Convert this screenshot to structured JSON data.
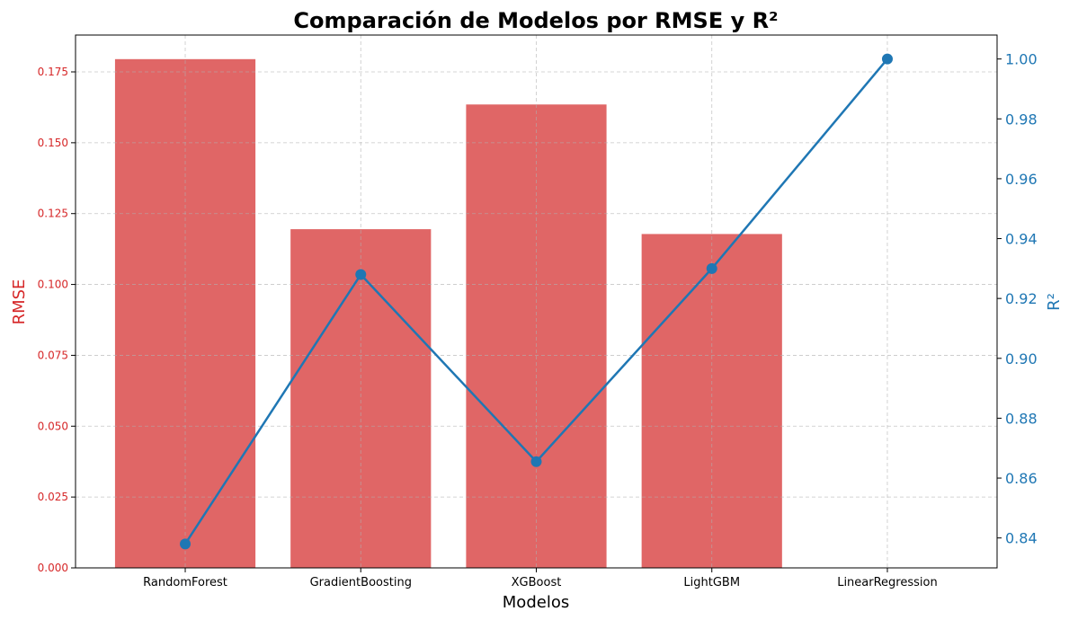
{
  "chart_data": {
    "type": "bar",
    "title": "Comparación de Modelos por RMSE y R²",
    "xlabel": "Modelos",
    "ylabel": "RMSE",
    "y2label": "R²",
    "categories": [
      "RandomForest",
      "GradientBoosting",
      "XGBoost",
      "LightGBM",
      "LinearRegression"
    ],
    "series": [
      {
        "name": "RMSE",
        "type": "bar",
        "axis": "left",
        "color": "#e06666",
        "values": [
          0.1795,
          0.1195,
          0.1635,
          0.1178,
          0.0
        ]
      },
      {
        "name": "R²",
        "type": "line",
        "axis": "right",
        "color": "#1f77b4",
        "marker": "circle",
        "values": [
          0.838,
          0.928,
          0.8655,
          0.93,
          1.0
        ]
      }
    ],
    "ylim": [
      0,
      0.188
    ],
    "y2lim": [
      0.83,
      1.008
    ],
    "yticks": [
      "0.000",
      "0.025",
      "0.050",
      "0.075",
      "0.100",
      "0.125",
      "0.150",
      "0.175"
    ],
    "y2ticks": [
      "0.84",
      "0.86",
      "0.88",
      "0.90",
      "0.92",
      "0.94",
      "0.96",
      "0.98",
      "1.00"
    ],
    "grid": true,
    "grid_style": "dashed"
  }
}
